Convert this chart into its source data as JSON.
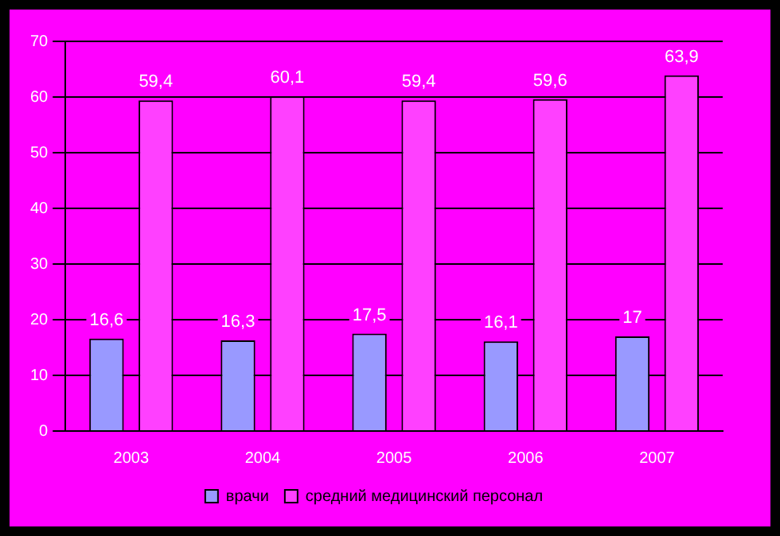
{
  "chart_data": {
    "type": "bar",
    "categories": [
      "2003",
      "2004",
      "2005",
      "2006",
      "2007"
    ],
    "series": [
      {
        "name": "врачи",
        "color": "#9999ff",
        "values": [
          16.6,
          16.3,
          17.5,
          16.1,
          17
        ],
        "value_labels": [
          "16,6",
          "16,3",
          "17,5",
          "16,1",
          "17"
        ]
      },
      {
        "name": "средний медицинский персонал",
        "color": "#ff40ff",
        "values": [
          59.4,
          60.1,
          59.4,
          59.6,
          63.9
        ],
        "value_labels": [
          "59,4",
          "60,1",
          "59,4",
          "59,6",
          "63,9"
        ]
      }
    ],
    "ylim": [
      0,
      70
    ],
    "yticks": [
      0,
      10,
      20,
      30,
      40,
      50,
      60,
      70
    ],
    "grid": "y",
    "legend": "bottom"
  }
}
